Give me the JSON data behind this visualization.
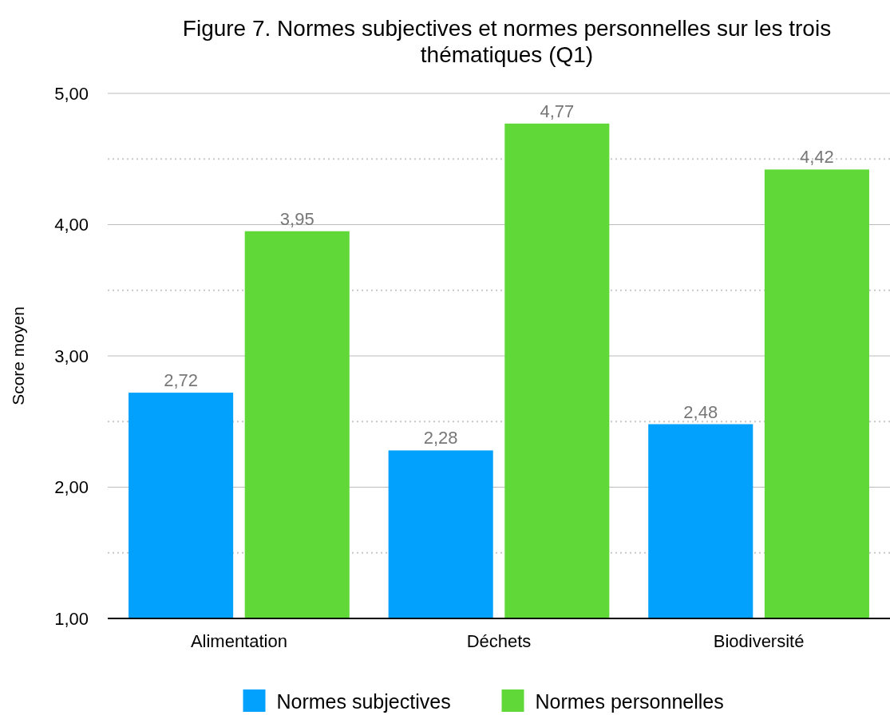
{
  "chart_data": {
    "type": "bar",
    "title": "Figure 7. Normes subjectives et normes personnelles sur les trois thématiques (Q1)",
    "ylabel": "Score moyen",
    "categories": [
      "Alimentation",
      "Déchets",
      "Biodiversité"
    ],
    "series": [
      {
        "name": "Normes subjectives",
        "color": "#03a1fe",
        "values": [
          2.72,
          2.28,
          2.48
        ],
        "value_labels": [
          "2,72",
          "2,28",
          "2,48"
        ]
      },
      {
        "name": "Normes personnelles",
        "color": "#60d838",
        "values": [
          3.95,
          4.77,
          4.42
        ],
        "value_labels": [
          "3,95",
          "4,77",
          "4,42"
        ]
      }
    ],
    "ylim": [
      1,
      5
    ],
    "yticks": [
      {
        "value": 1,
        "label": "1,00"
      },
      {
        "value": 1.5,
        "label": null
      },
      {
        "value": 2,
        "label": "2,00"
      },
      {
        "value": 2.5,
        "label": null
      },
      {
        "value": 3,
        "label": "3,00"
      },
      {
        "value": 3.5,
        "label": null
      },
      {
        "value": 4,
        "label": "4,00"
      },
      {
        "value": 4.5,
        "label": null
      },
      {
        "value": 5,
        "label": "5,00"
      }
    ],
    "grid": "y",
    "legend": "bottom"
  }
}
